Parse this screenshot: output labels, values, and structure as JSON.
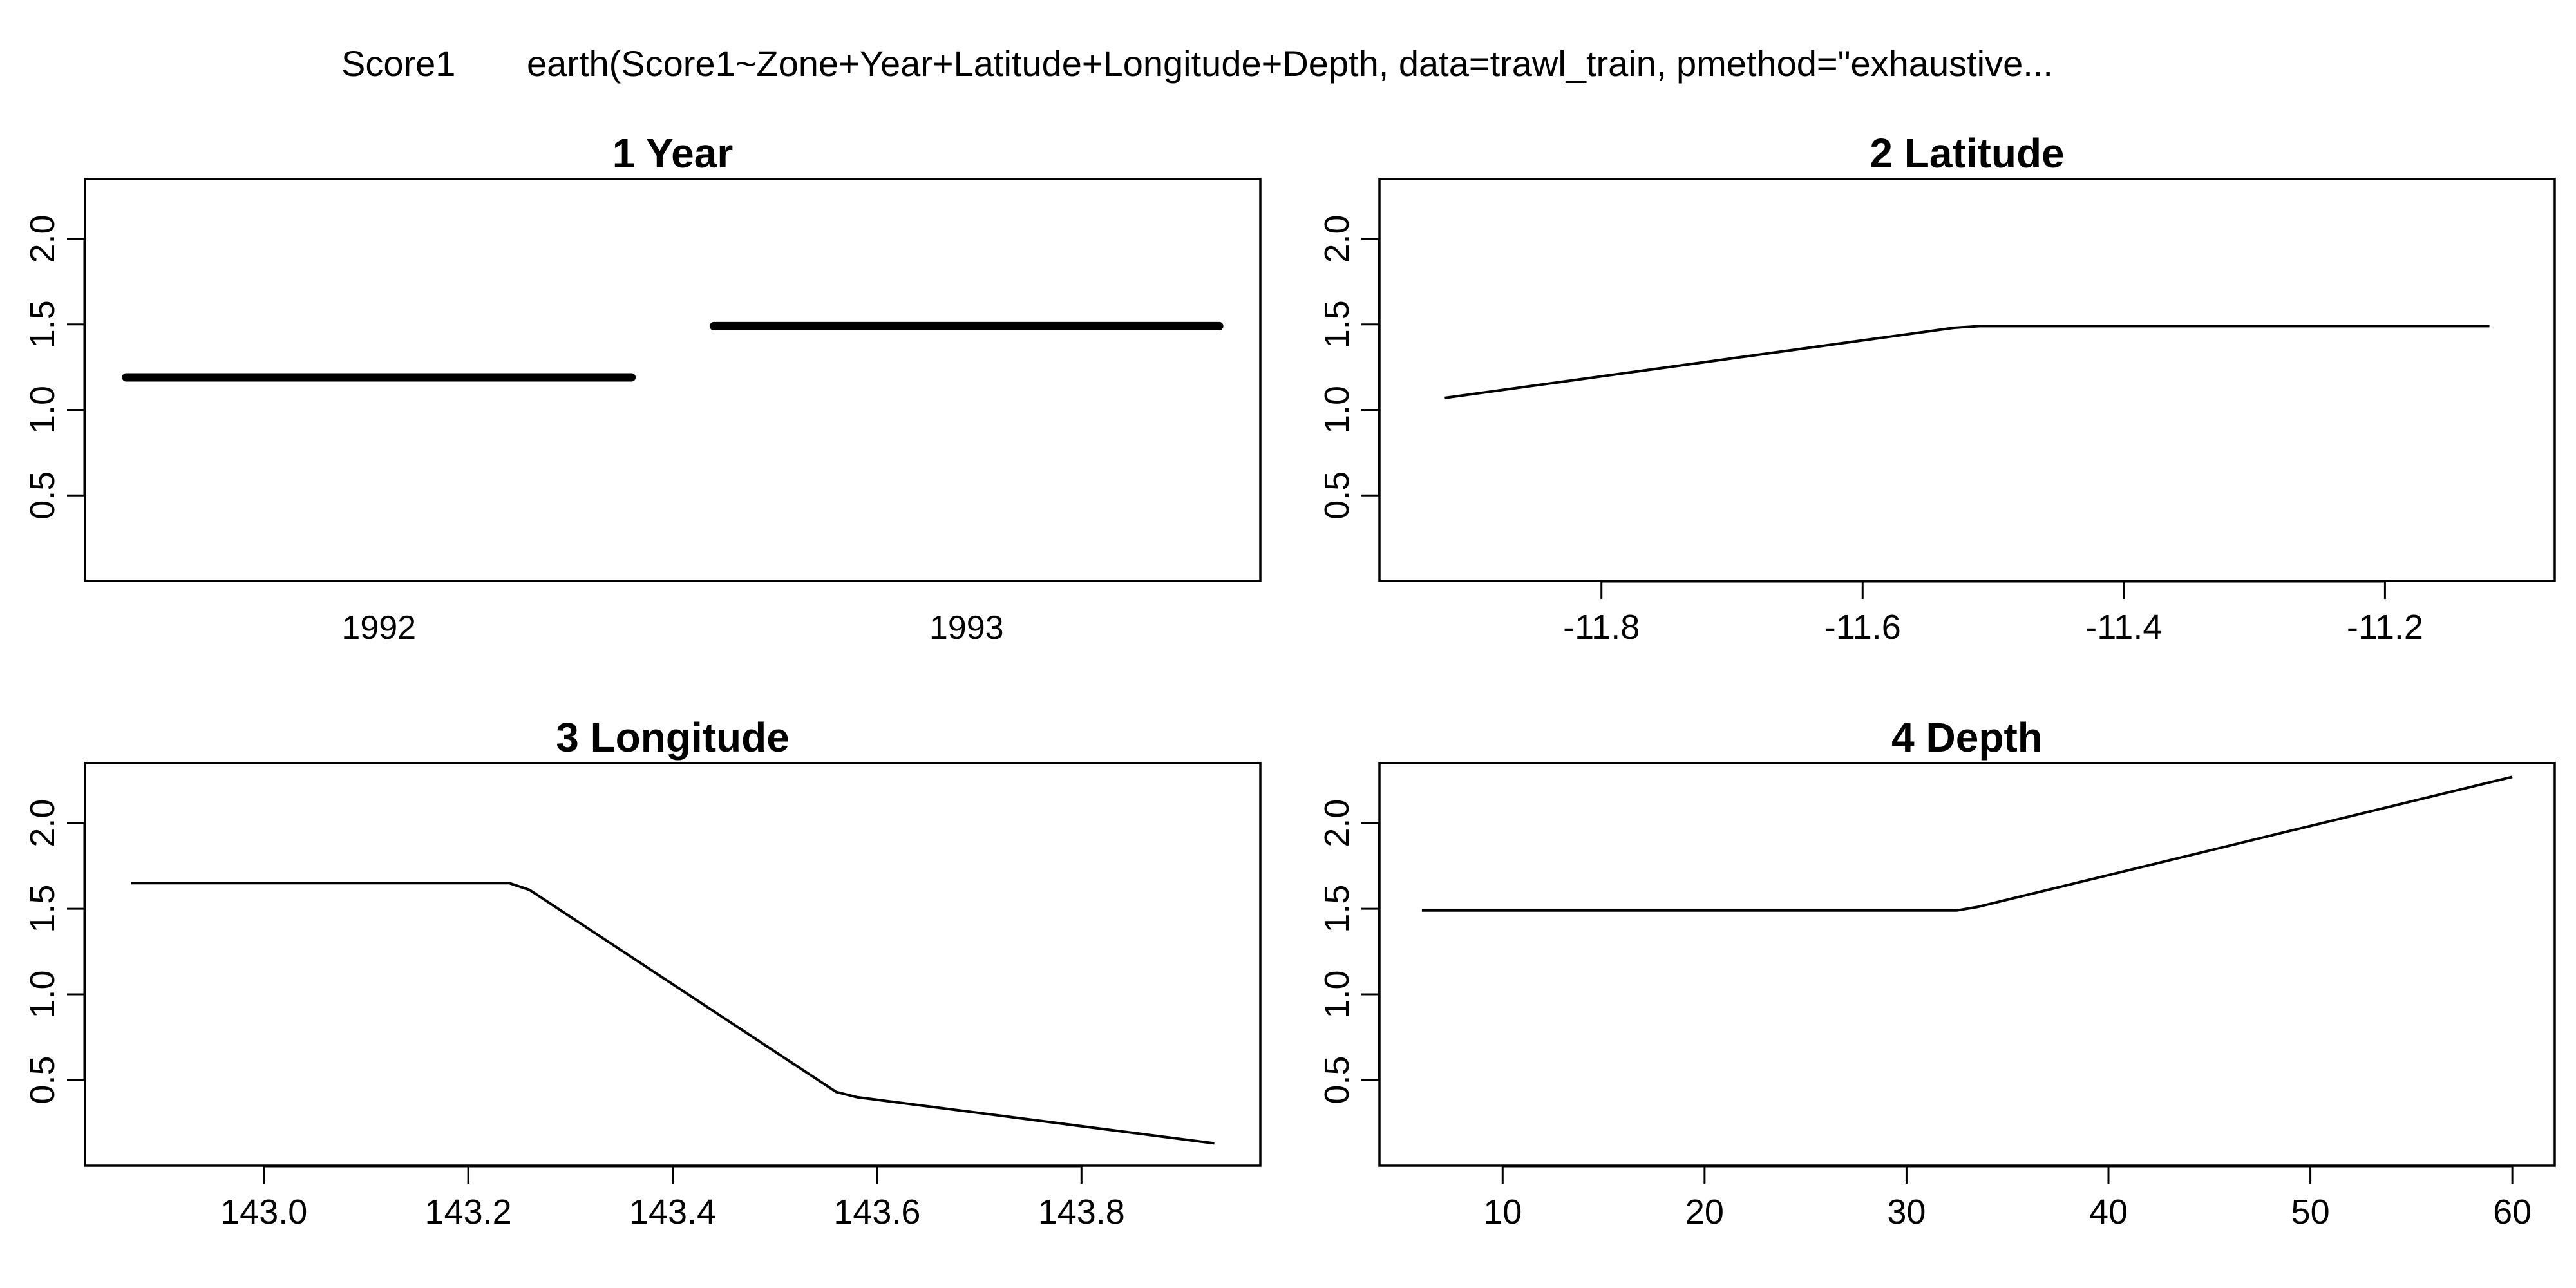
{
  "header": {
    "response": "Score1",
    "call": "earth(Score1~Zone+Year+Latitude+Longitude+Depth, data=trawl_train, pmethod=\"exhaustive..."
  },
  "chart_data": [
    {
      "type": "line",
      "title": "1  Year",
      "x_type": "categorical",
      "categories": [
        "1992",
        "1993"
      ],
      "values": [
        1.19,
        1.49
      ],
      "ylim": [
        0.0,
        2.35
      ],
      "yticks": [
        "0.5",
        "1.0",
        "1.5",
        "2.0"
      ],
      "grid": false
    },
    {
      "type": "line",
      "title": "2  Latitude",
      "x": [
        -11.92,
        -11.53,
        -11.51,
        -11.12
      ],
      "y": [
        1.07,
        1.48,
        1.49,
        1.49
      ],
      "xlim": [
        -11.97,
        -11.07
      ],
      "ylim": [
        0.0,
        2.35
      ],
      "xticks": [
        "-11.8",
        "-11.6",
        "-11.4",
        "-11.2"
      ],
      "yticks": [
        "0.5",
        "1.0",
        "1.5",
        "2.0"
      ],
      "grid": false
    },
    {
      "type": "line",
      "title": "3  Longitude",
      "x": [
        142.87,
        143.24,
        143.26,
        143.56,
        143.58,
        143.93
      ],
      "y": [
        1.65,
        1.65,
        1.61,
        0.43,
        0.4,
        0.13
      ],
      "xlim": [
        142.825,
        143.975
      ],
      "ylim": [
        0.0,
        2.35
      ],
      "xticks": [
        "143.0",
        "143.2",
        "143.4",
        "143.6",
        "143.8"
      ],
      "yticks": [
        "0.5",
        "1.0",
        "1.5",
        "2.0"
      ],
      "grid": false
    },
    {
      "type": "line",
      "title": "4  Depth",
      "x": [
        6,
        32.5,
        33.5,
        60
      ],
      "y": [
        1.49,
        1.49,
        1.51,
        2.27
      ],
      "xlim": [
        3.9,
        62.1
      ],
      "ylim": [
        0.0,
        2.35
      ],
      "xticks": [
        "10",
        "20",
        "30",
        "40",
        "50",
        "60"
      ],
      "yticks": [
        "0.5",
        "1.0",
        "1.5",
        "2.0"
      ],
      "grid": false
    }
  ]
}
